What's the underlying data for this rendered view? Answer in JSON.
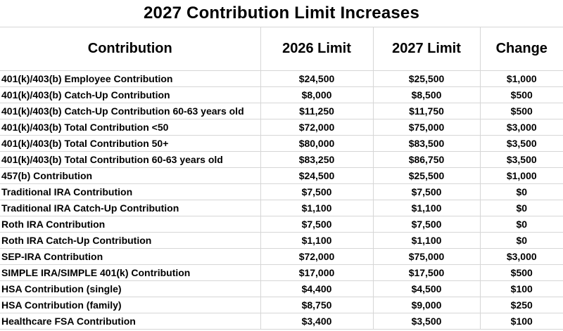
{
  "title": "2027 Contribution Limit Increases",
  "table": {
    "headers": [
      "Contribution",
      "2026 Limit",
      "2027 Limit",
      "Change"
    ],
    "rows": [
      [
        "401(k)/403(b) Employee Contribution",
        "$24,500",
        "$25,500",
        "$1,000"
      ],
      [
        "401(k)/403(b) Catch-Up Contribution",
        "$8,000",
        "$8,500",
        "$500"
      ],
      [
        "401(k)/403(b) Catch-Up Contribution 60-63 years old",
        "$11,250",
        "$11,750",
        "$500"
      ],
      [
        "401(k)/403(b) Total Contribution <50",
        "$72,000",
        "$75,000",
        "$3,000"
      ],
      [
        "401(k)/403(b) Total Contribution 50+",
        "$80,000",
        "$83,500",
        "$3,500"
      ],
      [
        "401(k)/403(b) Total Contribution 60-63 years old",
        "$83,250",
        "$86,750",
        "$3,500"
      ],
      [
        "457(b) Contribution",
        "$24,500",
        "$25,500",
        "$1,000"
      ],
      [
        "Traditional IRA Contribution",
        "$7,500",
        "$7,500",
        "$0"
      ],
      [
        "Traditional IRA Catch-Up Contribution",
        "$1,100",
        "$1,100",
        "$0"
      ],
      [
        "Roth IRA Contribution",
        "$7,500",
        "$7,500",
        "$0"
      ],
      [
        "Roth IRA Catch-Up Contribution",
        "$1,100",
        "$1,100",
        "$0"
      ],
      [
        "SEP-IRA Contribution",
        "$72,000",
        "$75,000",
        "$3,000"
      ],
      [
        "SIMPLE IRA/SIMPLE 401(k) Contribution",
        "$17,000",
        "$17,500",
        "$500"
      ],
      [
        "HSA Contribution (single)",
        "$4,400",
        "$4,500",
        "$100"
      ],
      [
        "HSA Contribution (family)",
        "$8,750",
        "$9,000",
        "$250"
      ],
      [
        "Healthcare FSA Contribution",
        "$3,400",
        "$3,500",
        "$100"
      ]
    ]
  },
  "colors": {
    "text": "#000000",
    "background": "#ffffff",
    "gridline": "#d6d6d6"
  }
}
